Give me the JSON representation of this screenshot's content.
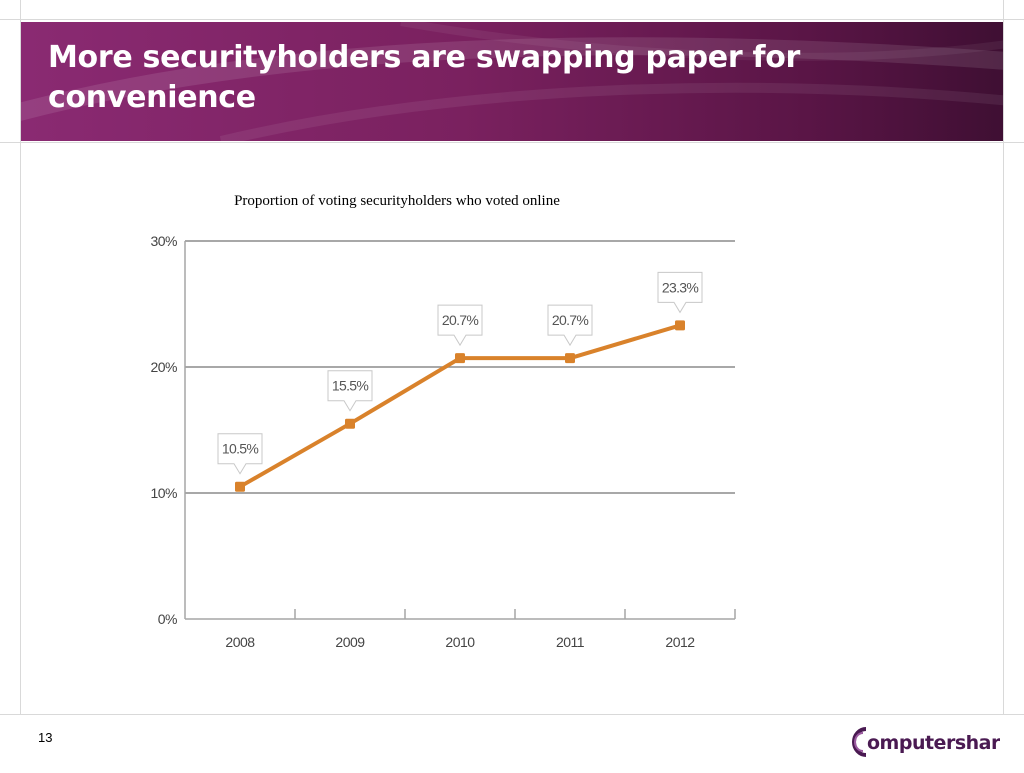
{
  "slide": {
    "title": "More securityholders are swapping paper for convenience",
    "page_number": "13",
    "brand_name": "omputershare",
    "colors": {
      "band": "#7a215f",
      "line": "#d9822b",
      "grid": "#8c8c8c"
    }
  },
  "chart_data": {
    "type": "line",
    "title": "Proportion of voting securityholders who voted online",
    "xlabel": "",
    "ylabel": "",
    "categories": [
      "2008",
      "2009",
      "2010",
      "2011",
      "2012"
    ],
    "series": [
      {
        "values": [
          10.5,
          15.5,
          20.7,
          20.7,
          23.3
        ]
      }
    ],
    "data_labels": [
      "10.5%",
      "15.5%",
      "20.7%",
      "20.7%",
      "23.3%"
    ],
    "ylim": [
      0,
      30
    ],
    "yticks": [
      0,
      10,
      20,
      30
    ],
    "ytick_labels": [
      "0%",
      "10%",
      "20%",
      "30%"
    ],
    "grid": true,
    "legend": "none"
  }
}
